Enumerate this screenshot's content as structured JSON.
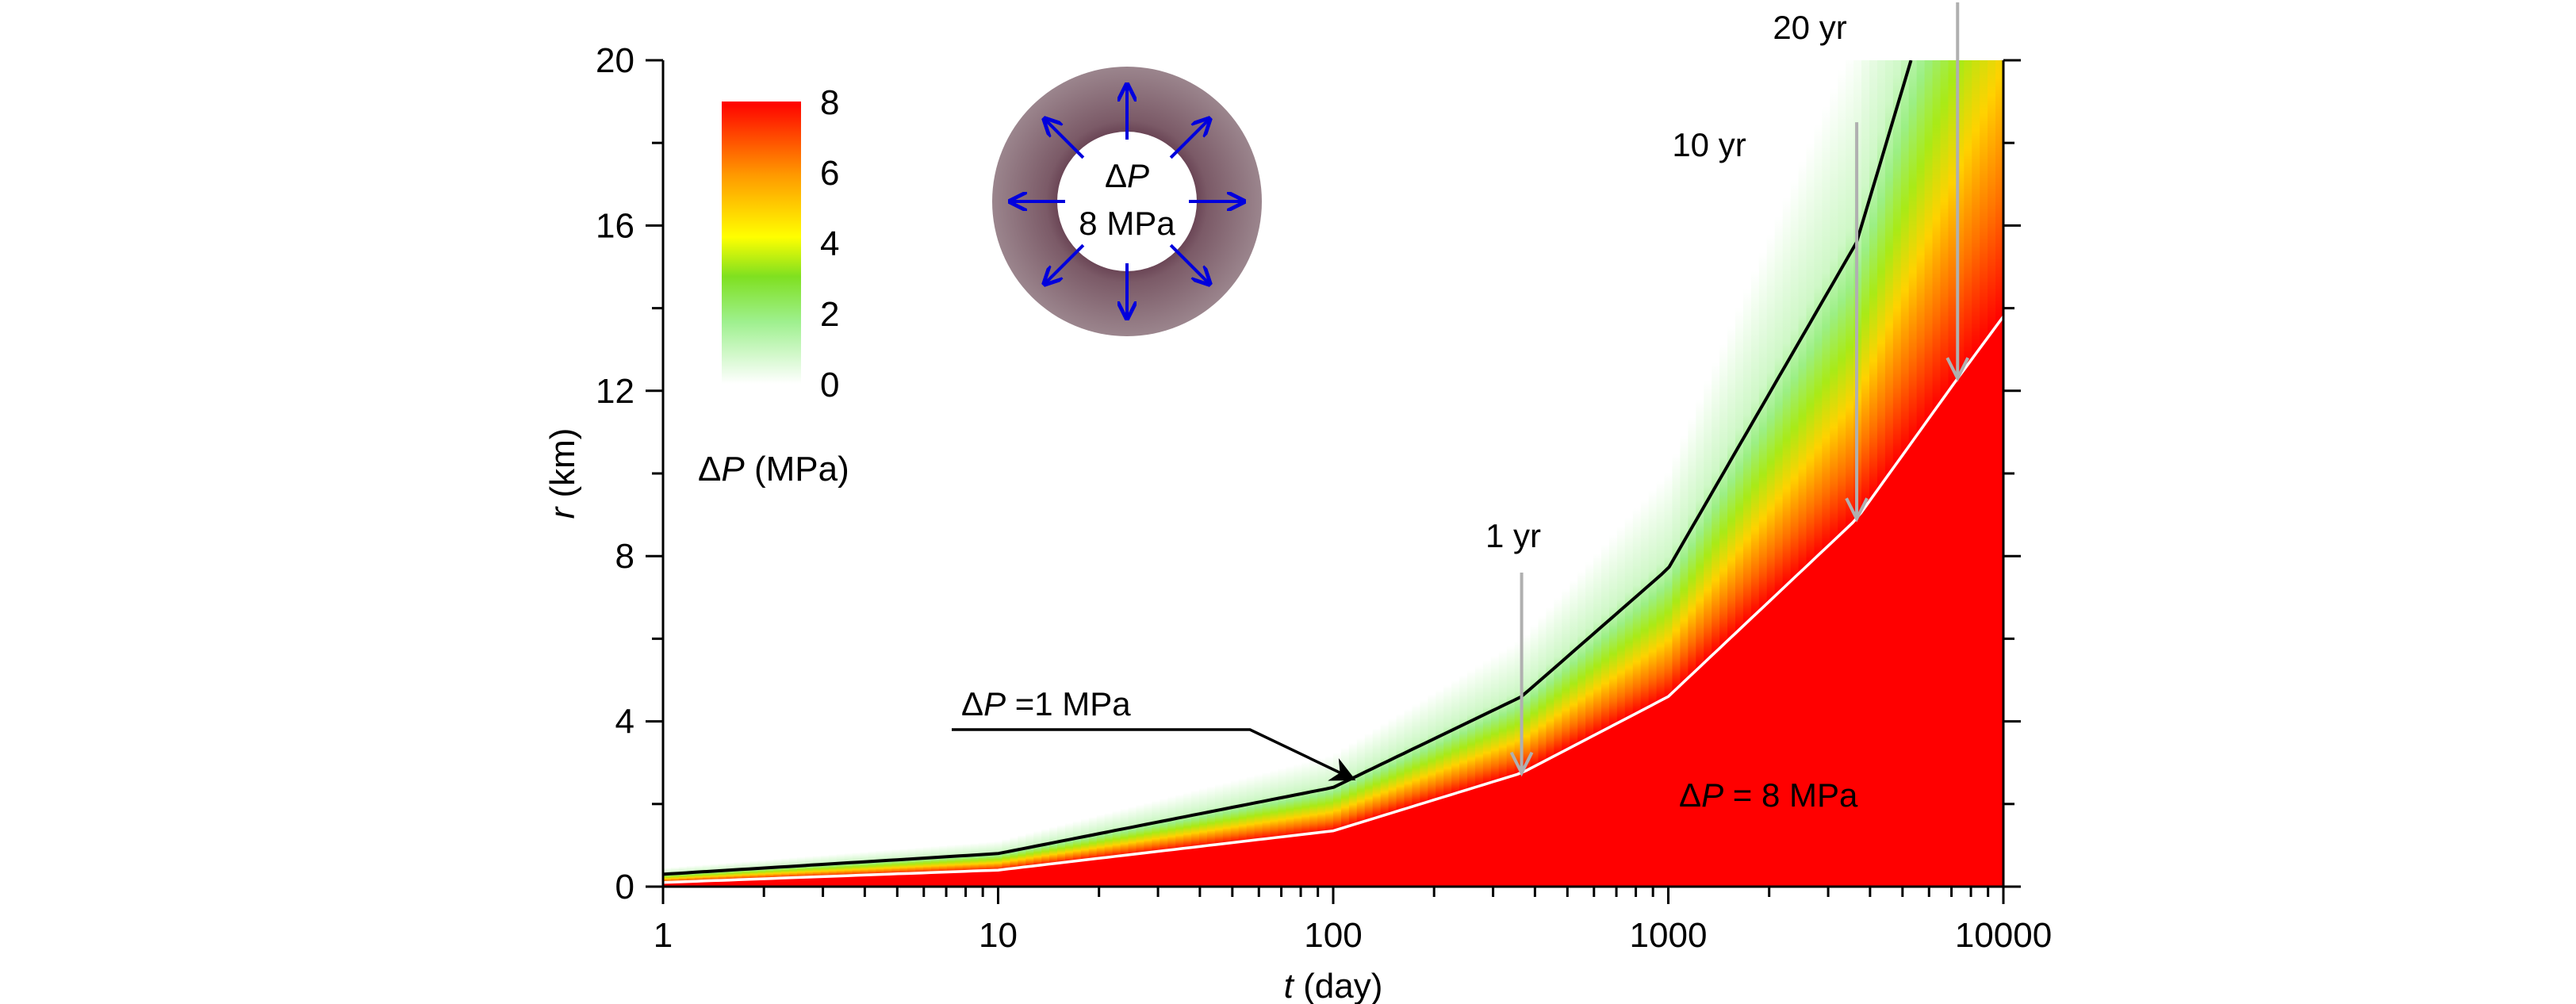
{
  "chart_data": {
    "type": "heatmap",
    "x_axis": {
      "label_italic": "t",
      "label_rest": " (day)",
      "scale": "log",
      "range": [
        1,
        10000
      ],
      "major_ticks": [
        1,
        10,
        100,
        1000,
        10000
      ],
      "tick_labels": [
        "1",
        "10",
        "100",
        "1000",
        "10000"
      ]
    },
    "y_axis": {
      "label_italic": "r",
      "label_rest": " (km)",
      "scale": "linear",
      "range": [
        0,
        20
      ],
      "major_ticks": [
        0,
        4,
        8,
        12,
        16,
        20
      ],
      "tick_labels": [
        "0",
        "4",
        "8",
        "12",
        "16",
        "20"
      ]
    },
    "colorbar": {
      "range": [
        0,
        8
      ],
      "ticks": [
        0,
        2,
        4,
        6,
        8
      ],
      "tick_labels": [
        "0",
        "2",
        "4",
        "6",
        "8"
      ],
      "label_prefix": "Δ",
      "label_italic": "P",
      "label_rest": " (MPa)",
      "colors": [
        "#ffffff",
        "#9ef08e",
        "#7fe020",
        "#ffff00",
        "#ff9900",
        "#ff0000"
      ]
    },
    "isolines": [
      {
        "value_mpa": 1,
        "color": "#000000",
        "points": [
          [
            1,
            0.3
          ],
          [
            10,
            0.8
          ],
          [
            100,
            2.4
          ],
          [
            365,
            4.6
          ],
          [
            1000,
            7.7
          ],
          [
            3650,
            15.6
          ],
          [
            5300,
            20.0
          ]
        ]
      },
      {
        "value_mpa": 8,
        "color": "#ffffff",
        "points": [
          [
            1,
            0.1
          ],
          [
            10,
            0.4
          ],
          [
            100,
            1.35
          ],
          [
            365,
            2.75
          ],
          [
            1000,
            4.6
          ],
          [
            3650,
            8.9
          ],
          [
            7300,
            12.3
          ],
          [
            10000,
            13.8
          ]
        ]
      }
    ],
    "time_markers": [
      {
        "label": "1 yr",
        "t_day": 365,
        "r_tip_km": 2.75,
        "r_top_km": 7.6
      },
      {
        "label": "10 yr",
        "t_day": 3650,
        "r_tip_km": 8.9,
        "r_top_km": 18.5
      },
      {
        "label": "20 yr",
        "t_day": 7300,
        "r_tip_km": 12.3,
        "r_top_km": 21.4
      }
    ],
    "annotations": {
      "isoline_label": {
        "prefix": "Δ",
        "italic": "P",
        "rest": " =1 MPa",
        "arrow_to": [
          115,
          2.6
        ]
      },
      "region_label": {
        "prefix": "Δ",
        "italic": "P",
        "rest": " = 8 MPa",
        "t_day": 1000,
        "r_km": 2.4
      }
    },
    "inset": {
      "center_prefix": "Δ",
      "center_italic": "P",
      "center_value": "8 MPa",
      "ring_color": "#93767f",
      "arrow_color": "#0000dd",
      "arrow_count": 8
    }
  }
}
